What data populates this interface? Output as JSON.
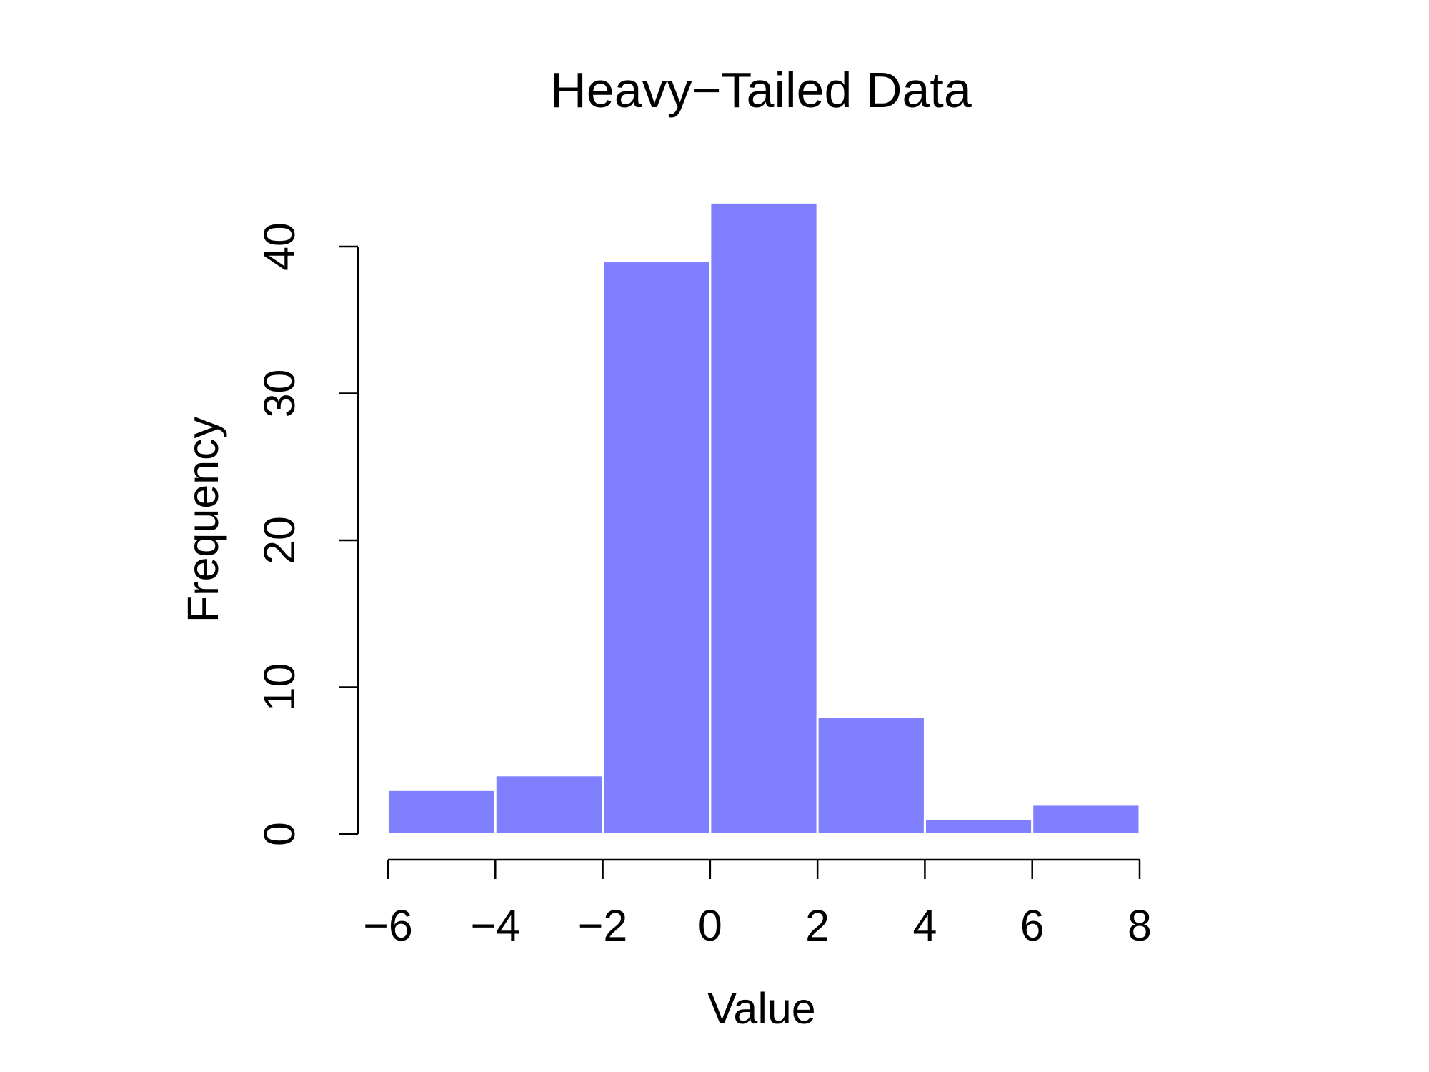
{
  "chart_data": {
    "type": "bar",
    "subtype": "histogram",
    "title": "Heavy−Tailed Data",
    "xlabel": "Value",
    "ylabel": "Frequency",
    "bins": [
      {
        "from": -6,
        "to": -4,
        "count": 3
      },
      {
        "from": -4,
        "to": -2,
        "count": 4
      },
      {
        "from": -2,
        "to": 0,
        "count": 39
      },
      {
        "from": 0,
        "to": 2,
        "count": 43
      },
      {
        "from": 2,
        "to": 4,
        "count": 8
      },
      {
        "from": 4,
        "to": 6,
        "count": 1
      },
      {
        "from": 6,
        "to": 8,
        "count": 2
      }
    ],
    "xlim": [
      -6,
      8
    ],
    "ylim": [
      0,
      43
    ],
    "x_ticks": [
      -6,
      -4,
      -2,
      0,
      2,
      4,
      6,
      8
    ],
    "x_tick_labels": [
      "−6",
      "−4",
      "−2",
      "0",
      "2",
      "4",
      "6",
      "8"
    ],
    "y_ticks": [
      0,
      10,
      20,
      30,
      40
    ],
    "y_tick_labels": [
      "0",
      "10",
      "20",
      "30",
      "40"
    ],
    "grid": false,
    "legend": "none",
    "bar_color": "#8080ff",
    "bar_border_color": "#ffffff"
  }
}
